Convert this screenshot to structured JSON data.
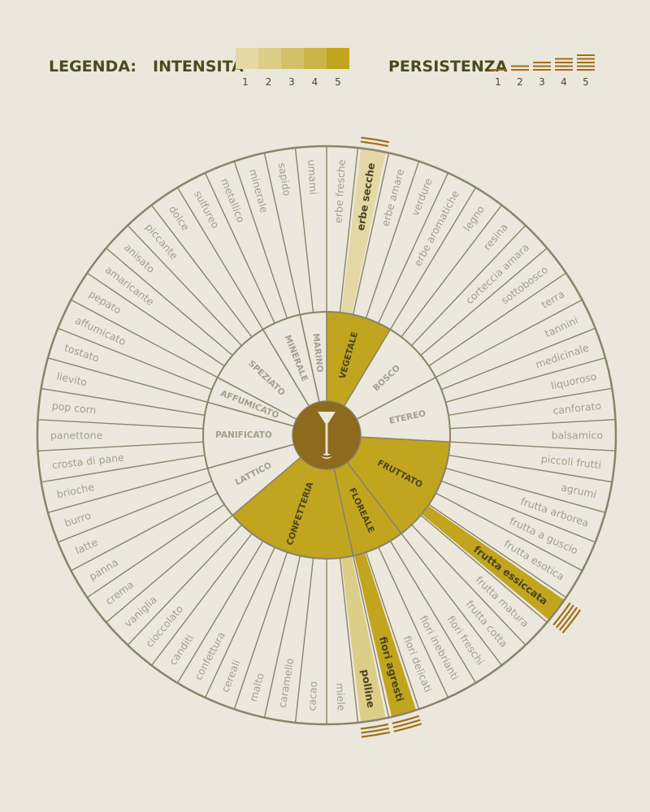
{
  "legend": {
    "title": "LEGENDA:",
    "intensity_label": "INTENSITÀ",
    "persistence_label": "PERSISTENZA",
    "scale_numbers": [
      "1",
      "2",
      "3",
      "4",
      "5"
    ],
    "intensity_colors": [
      "#e4d9a6",
      "#dccd88",
      "#d3c068",
      "#cbb447",
      "#c1a51e"
    ]
  },
  "colors": {
    "background": "#ece7dc",
    "sector_empty": "#ede8dd",
    "line": "#8b8269",
    "label_empty": "#a49e8c",
    "label_active": "#4a4320",
    "hub": "#8c6a1e",
    "persistence_mark": "#9e6e16"
  },
  "wheel": {
    "center_icon": "wine-glass-icon",
    "categories": [
      {
        "name": "VEGETALE",
        "intensity": 5,
        "descriptors": [
          {
            "name": "erbe fresche"
          },
          {
            "name": "erbe secche",
            "intensity": 1,
            "persistence": 2
          },
          {
            "name": "erbe amare"
          },
          {
            "name": "verdure"
          },
          {
            "name": "erbe aromatiche"
          }
        ]
      },
      {
        "name": "BOSCO",
        "descriptors": [
          {
            "name": "legno"
          },
          {
            "name": "resina"
          },
          {
            "name": "corteccia amara"
          },
          {
            "name": "sottobosco"
          },
          {
            "name": "terra"
          }
        ]
      },
      {
        "name": "ETEREO",
        "descriptors": [
          {
            "name": "tannini"
          },
          {
            "name": "medicinale"
          },
          {
            "name": "liquoroso"
          },
          {
            "name": "canforato"
          },
          {
            "name": "balsamico"
          }
        ]
      },
      {
        "name": "FRUTTATO",
        "intensity": 5,
        "descriptors": [
          {
            "name": "piccoli frutti"
          },
          {
            "name": "agrumi"
          },
          {
            "name": "frutta arborea"
          },
          {
            "name": "frutta a guscio"
          },
          {
            "name": "frutta esotica"
          },
          {
            "name": "frutta essiccata",
            "intensity": 5,
            "persistence": 4
          },
          {
            "name": "frutta matura"
          },
          {
            "name": "frutta cotta"
          }
        ]
      },
      {
        "name": "FLOREALE",
        "intensity": 5,
        "descriptors": [
          {
            "name": "fiori freschi"
          },
          {
            "name": "fiori inebrianti"
          },
          {
            "name": "fiori delicati"
          },
          {
            "name": "fiori agresti",
            "intensity": 5,
            "persistence": 3
          }
        ]
      },
      {
        "name": "CONFETTERIA",
        "intensity": 5,
        "descriptors": [
          {
            "name": "polline",
            "intensity": 2,
            "persistence": 3
          },
          {
            "name": "miele"
          },
          {
            "name": "cacao"
          },
          {
            "name": "caramello"
          },
          {
            "name": "malto"
          },
          {
            "name": "cereali"
          },
          {
            "name": "confettura"
          },
          {
            "name": "canditi"
          },
          {
            "name": "cioccolato"
          },
          {
            "name": "vaniglia"
          }
        ]
      },
      {
        "name": "LATTICO",
        "descriptors": [
          {
            "name": "crema"
          },
          {
            "name": "panna"
          },
          {
            "name": "latte"
          },
          {
            "name": "burro"
          }
        ]
      },
      {
        "name": "PANIFICATO",
        "descriptors": [
          {
            "name": "brioche"
          },
          {
            "name": "crosta di pane"
          },
          {
            "name": "panettone"
          },
          {
            "name": "pop corn"
          },
          {
            "name": "lievito"
          }
        ]
      },
      {
        "name": "AFFUMICATO",
        "descriptors": [
          {
            "name": "tostato"
          },
          {
            "name": "affumicato"
          }
        ]
      },
      {
        "name": "SPEZIATO",
        "descriptors": [
          {
            "name": "pepato"
          },
          {
            "name": "amaricante"
          },
          {
            "name": "anisato"
          },
          {
            "name": "piccante"
          },
          {
            "name": "dolce"
          }
        ]
      },
      {
        "name": "MINERALE",
        "descriptors": [
          {
            "name": "sulfureo"
          },
          {
            "name": "metallico"
          },
          {
            "name": "minerale"
          }
        ]
      },
      {
        "name": "MARINO",
        "descriptors": [
          {
            "name": "sapido"
          },
          {
            "name": "umami"
          }
        ]
      }
    ]
  }
}
